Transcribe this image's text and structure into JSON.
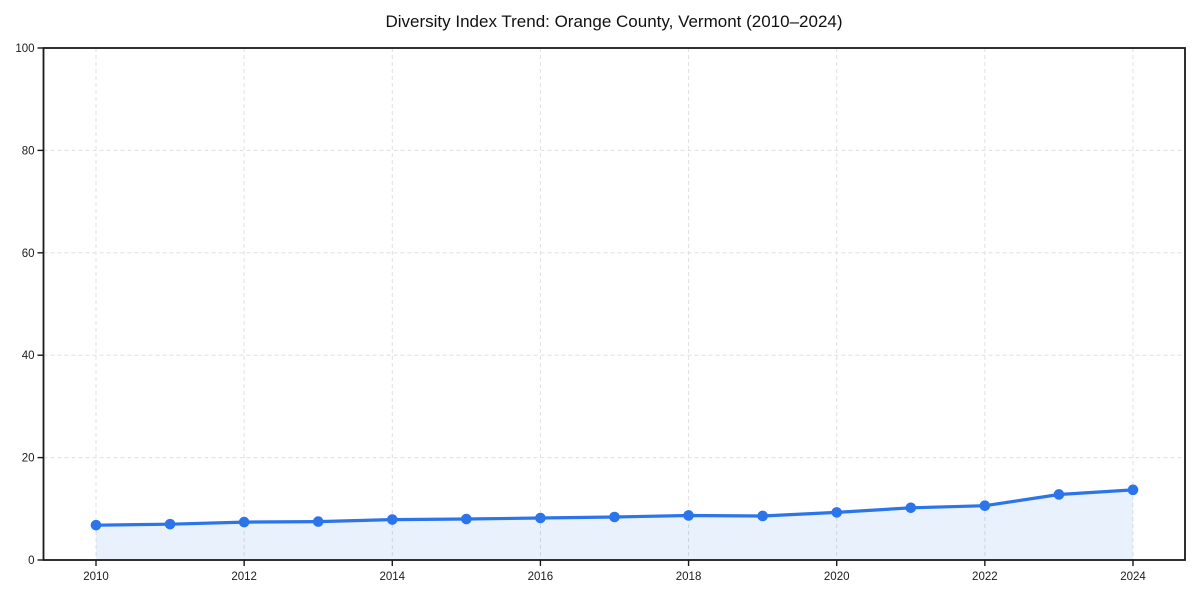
{
  "page": {
    "background": "#ffffff"
  },
  "chart_data": {
    "type": "line",
    "title": "Diversity Index Trend: Orange County, Vermont (2010–2024)",
    "x": [
      2010,
      2011,
      2012,
      2013,
      2014,
      2015,
      2016,
      2017,
      2018,
      2019,
      2020,
      2021,
      2022,
      2023,
      2024
    ],
    "series": [
      {
        "name": "Diversity Index",
        "values": [
          6.8,
          7.0,
          7.4,
          7.5,
          7.9,
          8.0,
          8.2,
          8.4,
          8.7,
          8.6,
          9.3,
          10.2,
          10.6,
          12.8,
          13.7
        ]
      }
    ],
    "xticks": [
      2010,
      2012,
      2014,
      2016,
      2018,
      2020,
      2022,
      2024
    ],
    "yticks": [
      0,
      20,
      40,
      60,
      80,
      100
    ],
    "ylim": [
      0,
      100
    ],
    "xlabel": "",
    "ylabel": "",
    "grid": true,
    "grid_style": "dashed",
    "legend_position": "none",
    "marker": "circle",
    "area_fill": true,
    "colors": {
      "line": "#2b74ea",
      "marker": "#2b74ea",
      "area": "rgba(43, 116, 234, 0.10)",
      "grid": "#e0e0e0",
      "axis": "#1a1a1a",
      "tick_label": "#1c1c1c",
      "title": "#111111",
      "background": "#ffffff"
    }
  }
}
